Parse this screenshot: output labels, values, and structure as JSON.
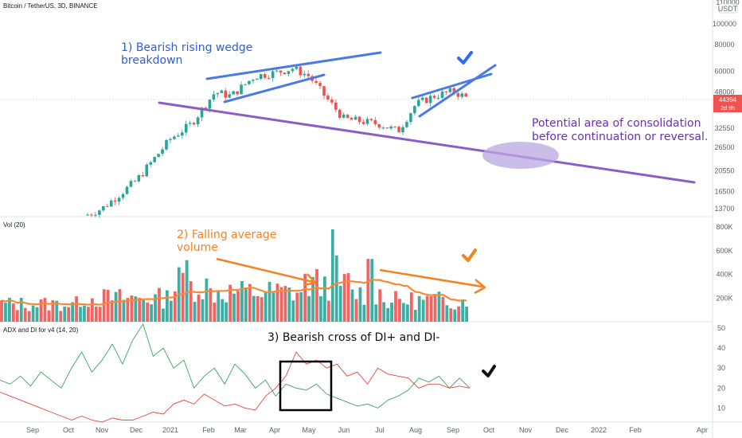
{
  "header": {
    "symbol_line": "Bitcoin / TetherUS, 3D, BINANCE",
    "currency": "USDT",
    "price_tag": "44394",
    "price_sub": "2d 9h",
    "vol_title": "Vol (20)",
    "adx_title": "ADX and DI for v4 (14, 20)"
  },
  "annotations": {
    "wedge": [
      "1) Bearish rising wedge",
      "breakdown"
    ],
    "volume": [
      "2) Falling average",
      "volume"
    ],
    "dicross": "3) Bearish cross of DI+ and DI-",
    "consolidation": [
      "Potential area of consolidation",
      "before continuation or reversal."
    ]
  },
  "colors": {
    "up": "#26a69a",
    "down": "#ef5350",
    "wedge_lines": "#4a7ae8",
    "support_line": "#8c5cc7",
    "volume_ma": "#f58b35",
    "di_plus": "#3aa35c",
    "di_minus": "#e2483d",
    "annotation_blue": "#2d5fd9",
    "annotation_orange": "#f5821f",
    "annotation_purple": "#6a2fb8"
  },
  "chart_data": [
    {
      "type": "candlestick",
      "title": "Bitcoin / TetherUS, 3D, BINANCE",
      "y_scale": "log",
      "y_ticks": [
        13700,
        16500,
        20550,
        26500,
        32550,
        40000,
        48000,
        60000,
        80000,
        100000
      ],
      "top_tick": "110000",
      "x_ticks": [
        "Sep",
        "Oct",
        "Nov",
        "Dec",
        "2021",
        "Feb",
        "Mar",
        "Apr",
        "May",
        "Jun",
        "Jul",
        "Aug",
        "Sep",
        "Oct",
        "Nov",
        "Dec",
        "2022",
        "Feb",
        "Apr"
      ],
      "close_anchors": [
        [
          "Sep",
          10500
        ],
        [
          "Oct",
          11800
        ],
        [
          "Nov",
          13700
        ],
        [
          "Dec",
          18500
        ],
        [
          "2021",
          29000
        ],
        [
          "Feb",
          34000
        ],
        [
          "Feb-mid",
          48000
        ],
        [
          "Mar",
          46000
        ],
        [
          "Mar-mid",
          57000
        ],
        [
          "Apr",
          59000
        ],
        [
          "Apr-mid",
          62000
        ],
        [
          "May",
          57000
        ],
        [
          "May-mid",
          45000
        ],
        [
          "Jun",
          36000
        ],
        [
          "Jun-mid",
          35000
        ],
        [
          "Jul",
          34000
        ],
        [
          "Jul-mid",
          31500
        ],
        [
          "Aug",
          42000
        ],
        [
          "Aug-mid",
          46000
        ],
        [
          "Sep",
          48500
        ],
        [
          "Sep-mid",
          44394
        ]
      ],
      "current_price": 44394
    },
    {
      "type": "bar",
      "title": "Vol (20)",
      "y_ticks": [
        "200K",
        "400K",
        "600K",
        "800K"
      ],
      "moving_average": "20",
      "peak": 780000
    },
    {
      "type": "line",
      "title": "ADX and DI for v4 (14, 20)",
      "y_ticks": [
        10,
        20,
        30,
        40,
        50
      ],
      "series": [
        {
          "name": "DI+",
          "values": [
            24,
            22,
            26,
            21,
            28,
            24,
            20,
            30,
            38,
            28,
            34,
            42,
            32,
            44,
            52,
            36,
            40,
            30,
            34,
            20,
            26,
            30,
            22,
            32,
            27,
            20,
            24,
            16,
            22,
            20,
            19,
            22,
            17,
            15,
            13,
            11,
            12,
            10,
            14,
            16,
            19,
            25,
            23,
            26,
            20,
            25,
            20
          ]
        },
        {
          "name": "DI-",
          "values": [
            18,
            16,
            14,
            12,
            10,
            8,
            6,
            4,
            6,
            4,
            3,
            5,
            4,
            4,
            6,
            8,
            7,
            12,
            14,
            12,
            17,
            14,
            11,
            12,
            10,
            9,
            16,
            20,
            26,
            38,
            32,
            34,
            30,
            32,
            26,
            28,
            22,
            30,
            27,
            26,
            25,
            20,
            22,
            22,
            20,
            21,
            20
          ]
        }
      ]
    }
  ]
}
